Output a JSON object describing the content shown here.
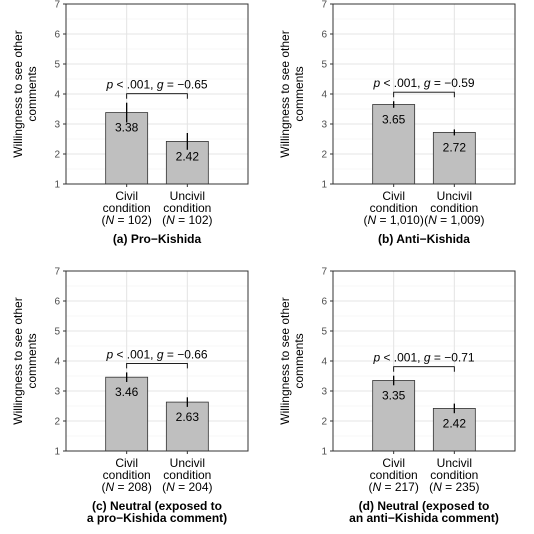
{
  "chart_data": [
    {
      "type": "bar",
      "caption": "(a) Pro−Kishida",
      "ylabel": [
        "Willingness to see other",
        "comments"
      ],
      "ylim": [
        1,
        7
      ],
      "yticks": [
        "1",
        "2",
        "3",
        "4",
        "5",
        "6",
        "7"
      ],
      "categories": [
        [
          "Civil",
          "condition",
          "(N = 102)"
        ],
        [
          "Uncivil",
          "condition",
          "(N = 102)"
        ]
      ],
      "values": [
        3.38,
        2.42
      ],
      "value_labels": [
        "3.38",
        "2.42"
      ],
      "error": [
        [
          3.05,
          3.71
        ],
        [
          2.14,
          2.7
        ]
      ],
      "stat": "p < .001, g = −0.65",
      "grid": true,
      "bar_color": "#bfbfbf"
    },
    {
      "type": "bar",
      "caption": "(b) Anti−Kishida",
      "ylabel": [
        "Willingness to see other",
        "comments"
      ],
      "ylim": [
        1,
        7
      ],
      "yticks": [
        "1",
        "2",
        "3",
        "4",
        "5",
        "6",
        "7"
      ],
      "categories": [
        [
          "Civil",
          "condition",
          "(N = 1,010)"
        ],
        [
          "Uncivil",
          "condition",
          "(N = 1,009)"
        ]
      ],
      "values": [
        3.65,
        2.72
      ],
      "value_labels": [
        "3.65",
        "2.72"
      ],
      "error": [
        [
          3.54,
          3.76
        ],
        [
          2.62,
          2.82
        ]
      ],
      "stat": "p < .001, g = −0.59",
      "grid": true,
      "bar_color": "#bfbfbf"
    },
    {
      "type": "bar",
      "caption": [
        "(c) Neutral (exposed to",
        "a pro−Kishida comment)"
      ],
      "ylabel": [
        "Willingness to see other",
        "comments"
      ],
      "ylim": [
        1,
        7
      ],
      "yticks": [
        "1",
        "2",
        "3",
        "4",
        "5",
        "6",
        "7"
      ],
      "categories": [
        [
          "Civil",
          "condition",
          "(N = 208)"
        ],
        [
          "Uncivil",
          "condition",
          "(N = 204)"
        ]
      ],
      "values": [
        3.46,
        2.63
      ],
      "value_labels": [
        "3.46",
        "2.63"
      ],
      "error": [
        [
          3.3,
          3.62
        ],
        [
          2.47,
          2.79
        ]
      ],
      "stat": "p < .001, g = −0.66",
      "grid": true,
      "bar_color": "#bfbfbf"
    },
    {
      "type": "bar",
      "caption": [
        "(d) Neutral (exposed to",
        "an anti−Kishida comment)"
      ],
      "ylabel": [
        "Willingness to see other",
        "comments"
      ],
      "ylim": [
        1,
        7
      ],
      "yticks": [
        "1",
        "2",
        "3",
        "4",
        "5",
        "6",
        "7"
      ],
      "categories": [
        [
          "Civil",
          "condition",
          "(N = 217)"
        ],
        [
          "Uncivil",
          "condition",
          "(N = 235)"
        ]
      ],
      "values": [
        3.35,
        2.42
      ],
      "value_labels": [
        "3.35",
        "2.42"
      ],
      "error": [
        [
          3.19,
          3.51
        ],
        [
          2.26,
          2.58
        ]
      ],
      "stat": "p < .001, g = −0.71",
      "grid": true,
      "bar_color": "#bfbfbf"
    }
  ]
}
